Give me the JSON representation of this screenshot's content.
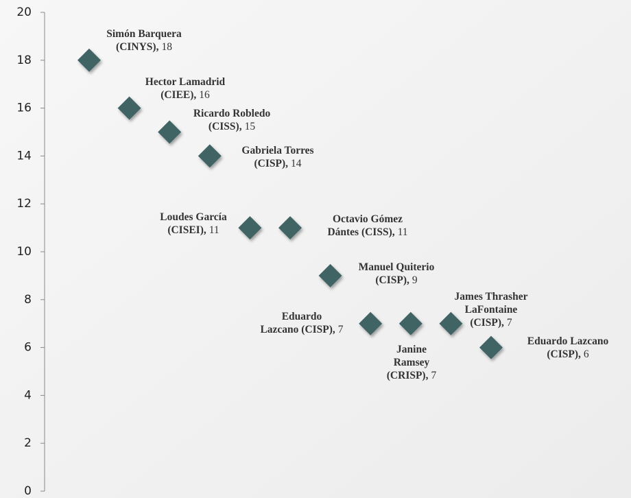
{
  "chart_data": {
    "type": "scatter",
    "categories": [
      [
        "Simón Barquera",
        "(CINYS),"
      ],
      [
        "Hector Lamadrid",
        "(CIEE),"
      ],
      [
        "Ricardo Robledo",
        "(CISS),"
      ],
      [
        "Gabriela Torres",
        "(CISP),"
      ],
      [
        "Loudes García",
        "(CISEI),"
      ],
      [
        "Octavio Gómez",
        "Dántes (CISS),"
      ],
      [
        "Manuel Quiterio",
        "(CISP),"
      ],
      [
        "Eduardo",
        "Lazcano (CISP),"
      ],
      [
        "Janine",
        "Ramsey",
        "(CRISP),"
      ],
      [
        "James Thrasher",
        "LaFontaine",
        "(CISP),"
      ],
      [
        "Eduardo Lazcano",
        "(CISP),"
      ]
    ],
    "values": [
      18,
      16,
      15,
      14,
      11,
      11,
      9,
      7,
      7,
      7,
      6
    ],
    "color": "#3f6464",
    "ylim": [
      0,
      20
    ],
    "yticks": [
      0,
      2,
      4,
      6,
      8,
      10,
      12,
      14,
      16,
      18,
      20
    ]
  }
}
